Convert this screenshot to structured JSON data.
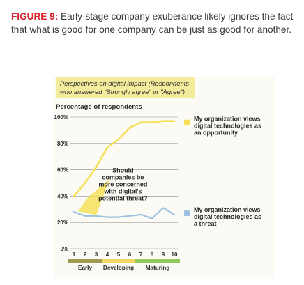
{
  "caption": {
    "label": "FIGURE 9:",
    "text": "Early-stage company exuberance likely ignores the fact that what is good for one company can be just as good for another."
  },
  "chart_data": {
    "type": "line",
    "title": "Perspectives on digital impact (Respondents who answered \"Strongly agree\" or \"Agree\")",
    "ylabel": "Percentage of respondents",
    "x": [
      1,
      2,
      3,
      4,
      5,
      6,
      7,
      8,
      9,
      10
    ],
    "ylim": [
      0,
      100
    ],
    "y_ticks": [
      "0%",
      "20%",
      "40%",
      "60%",
      "80%",
      "100%"
    ],
    "y_tick_values": [
      0,
      20,
      40,
      60,
      80,
      100
    ],
    "grid": true,
    "series": [
      {
        "name": "My organization views digital technologies as an opportunity",
        "name_lines": [
          "My organization views",
          "digital technologies as",
          "an opportunity"
        ],
        "color": "#f5e15a",
        "values": [
          40,
          50,
          62,
          77,
          83,
          92,
          96,
          96,
          97,
          97
        ]
      },
      {
        "name": "My organization views digital technologies as a threat",
        "name_lines": [
          "My organization views",
          "digital technologies as",
          "a threat"
        ],
        "color": "#9ec3e2",
        "values": [
          28,
          25,
          25,
          24,
          24,
          25,
          26,
          23,
          31,
          26
        ]
      }
    ],
    "annotation": {
      "lines": [
        "Should",
        "companies be",
        "more concerned",
        "with digital's",
        "potential threat?"
      ],
      "color": "#f5e15a"
    },
    "stages": [
      {
        "label": "Early",
        "from": 1,
        "to": 3,
        "color": "#a39a52"
      },
      {
        "label": "Developing",
        "from": 4,
        "to": 6,
        "color": "#f2d866"
      },
      {
        "label": "Maturing",
        "from": 7,
        "to": 10,
        "color": "#96c95b"
      }
    ]
  }
}
